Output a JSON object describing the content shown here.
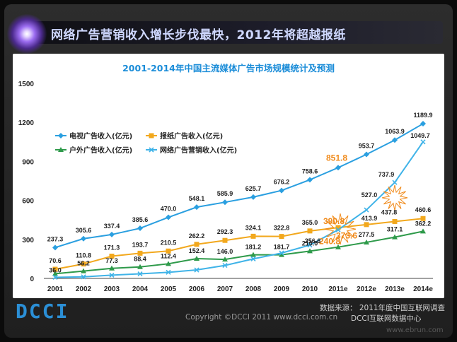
{
  "headline": "网络广告营销收入增长步伐最快，2012年将超越报纸",
  "footer": {
    "logo": "DCCI",
    "copyright": "Copyright ©DCCI 2011 www.dcci.com.cn",
    "source_line1": "数据来源： 2011年度中国互联网调查",
    "source_line2": "DCCI互联网数据中心",
    "watermark": "www.ebrun.com"
  },
  "colors": {
    "tv": "#2a9fe0",
    "newspaper": "#f2a81d",
    "outdoor": "#2e9a4a",
    "internet": "#3fb3e8",
    "title": "#1a8cd8",
    "highlight": "#f08a1a"
  },
  "chart_data": {
    "type": "line",
    "title": "2001-2014年中国主流媒体广告市场规模统计及预测",
    "xlabel": "",
    "ylabel": "",
    "ylim": [
      0,
      1500
    ],
    "yticks": [
      "0",
      "300",
      "600",
      "900",
      "1200",
      "1500"
    ],
    "categories": [
      "2001",
      "2002",
      "2003",
      "2004",
      "2005",
      "2006",
      "2007",
      "2008",
      "2009",
      "2010",
      "2011e",
      "2012e",
      "2013e",
      "2014e"
    ],
    "series": [
      {
        "name": "电视广告收入(亿元)",
        "key": "tv",
        "marker": "diamond",
        "values": [
          237.3,
          305.6,
          337.4,
          385.6,
          470.0,
          548.1,
          585.9,
          625.7,
          676.2,
          758.6,
          851.8,
          953.7,
          1063.9,
          1189.9
        ],
        "labels": [
          "237.3",
          "305.6",
          "337.4",
          "385.6",
          "470.0",
          "548.1",
          "585.9",
          "625.7",
          "676.2",
          "758.6",
          "851.8",
          "953.7",
          "1063.9",
          "1189.9"
        ]
      },
      {
        "name": "报纸广告收入(亿元)",
        "key": "newspaper",
        "marker": "square",
        "values": [
          70.6,
          110.8,
          171.3,
          193.7,
          210.5,
          262.2,
          292.3,
          324.1,
          322.8,
          365.0,
          390.8,
          413.9,
          437.8,
          460.6
        ],
        "labels": [
          "70.6",
          "110.8",
          "171.3",
          "193.7",
          "210.5",
          "262.2",
          "292.3",
          "324.1",
          "322.8",
          "365.0",
          "390.8",
          "413.9",
          "437.8",
          "460.6"
        ]
      },
      {
        "name": "户外广告收入(亿元)",
        "key": "outdoor",
        "marker": "triangle",
        "values": [
          36.0,
          56.2,
          77.3,
          88.4,
          112.4,
          152.4,
          146.0,
          181.2,
          181.7,
          210.0,
          240.8,
          277.5,
          317.1,
          362.2
        ],
        "labels": [
          "36.0",
          "56.2",
          "77.3",
          "88.4",
          "112.4",
          "152.4",
          "146.0",
          "181.2",
          "181.7",
          "210.0",
          "240.8",
          "277.5",
          "317.1",
          "362.2"
        ]
      },
      {
        "name": "网络广告营销收入(亿元)",
        "key": "internet",
        "marker": "x",
        "values": [
          8.2,
          12.0,
          25.0,
          35.0,
          47.0,
          65.0,
          100.0,
          150.0,
          195.0,
          256.6,
          373.6,
          527.0,
          737.9,
          1049.7
        ],
        "labels": [
          "",
          "",
          "",
          "",
          "",
          "",
          "",
          "",
          "",
          "256.6",
          "373.6",
          "527.0",
          "737.9",
          "1049.7"
        ]
      }
    ],
    "highlighted_labels": [
      "851.8",
      "390.8",
      "373.6",
      "240.8"
    ],
    "legend_placement": "top-left",
    "grid": false
  }
}
